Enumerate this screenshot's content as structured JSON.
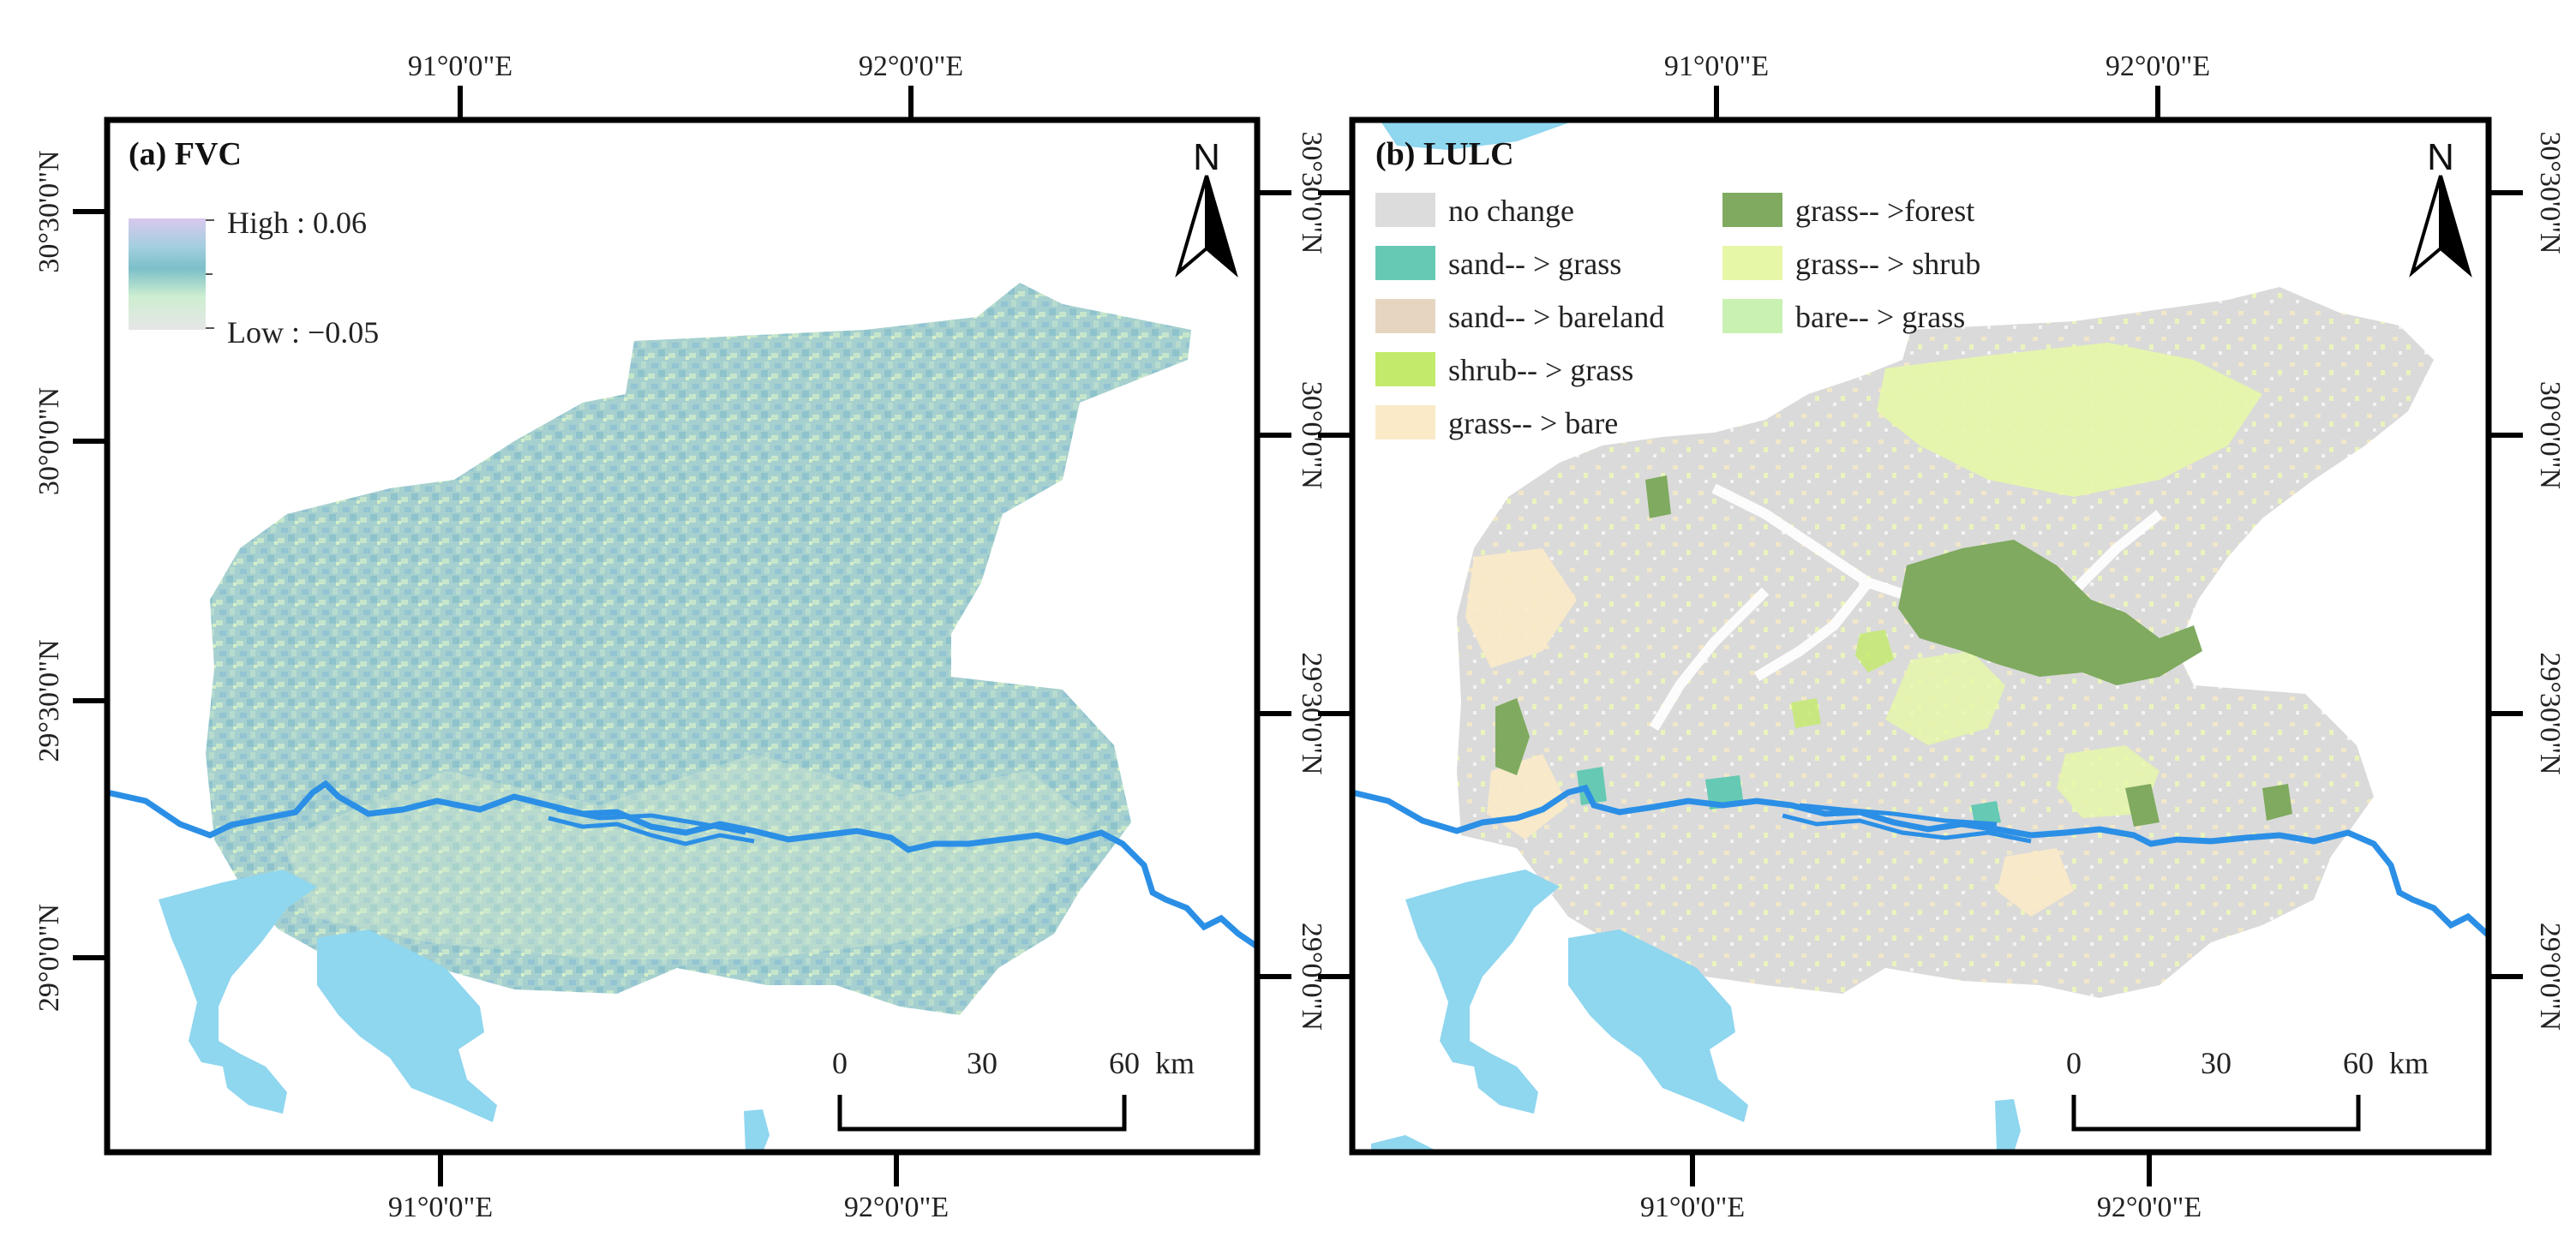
{
  "panels": [
    {
      "id": "fvc",
      "title": "(a) FVC",
      "top_ticks": [
        "91°0'0\"E",
        "92°0'0\"E"
      ],
      "bottom_ticks": [
        "91°0'0\"E",
        "92°0'0\"E"
      ],
      "left_ticks": [
        "30°30'0\"N",
        "30°0'0\"N",
        "29°30'0\"N",
        "29°0'0\"N"
      ],
      "right_ticks": [
        "30°30'0\"N",
        "30°0'0\"N",
        "29°30'0\"N",
        "29°0'0\"N"
      ],
      "legend": {
        "high_label": "High : 0.06",
        "low_label": "Low : −0.05"
      },
      "north_label": "N",
      "scale_bar": {
        "labels": [
          "0",
          "30",
          "60"
        ],
        "unit": "km"
      }
    },
    {
      "id": "lulc",
      "title": "(b) LULC",
      "top_ticks": [
        "91°0'0\"E",
        "92°0'0\"E"
      ],
      "bottom_ticks": [
        "91°0'0\"E",
        "92°0'0\"E"
      ],
      "right_ticks": [
        "30°30'0\"N",
        "30°0'0\"N",
        "29°30'0\"N",
        "29°0'0\"N"
      ],
      "legend": {
        "items": [
          {
            "label": "no change",
            "color": "#dcdcdc"
          },
          {
            "label": "sand-- > grass",
            "color": "#66c9b4"
          },
          {
            "label": "sand-- > bareland",
            "color": "#e6d6c0"
          },
          {
            "label": "shrub-- > grass",
            "color": "#c3ea6a"
          },
          {
            "label": "grass-- > bare",
            "color": "#fbeac8"
          },
          {
            "label": "grass-- >forest",
            "color": "#7faa5f"
          },
          {
            "label": "grass-- > shrub",
            "color": "#e6f7a8"
          },
          {
            "label": "bare-- > grass",
            "color": "#c9f2b2"
          }
        ]
      },
      "north_label": "N",
      "scale_bar": {
        "labels": [
          "0",
          "30",
          "60"
        ],
        "unit": "km"
      }
    }
  ],
  "colors": {
    "river": "#2b8fe6",
    "lake": "#8fd6ef",
    "fvc_base": "#a9d3cf",
    "lulc_base": "#dcdcdc",
    "frame": "#000000"
  }
}
